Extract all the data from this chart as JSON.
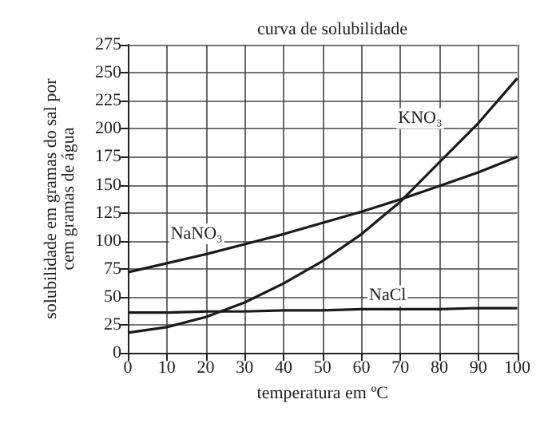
{
  "chart_data": {
    "type": "line",
    "title": "curva de solubilidade",
    "xlabel": "temperatura em ºC",
    "ylabel": "solubilidade em gramas do sal por\ncem gramas de água",
    "x": [
      0,
      10,
      20,
      30,
      40,
      50,
      60,
      70,
      80,
      90,
      100
    ],
    "series": [
      {
        "name": "KNO₃",
        "color": "#1a1a1a",
        "values": [
          18,
          23,
          32,
          45,
          62,
          82,
          106,
          135,
          170,
          205,
          245
        ]
      },
      {
        "name": "NaNO₃",
        "color": "#1a1a1a",
        "values": [
          72,
          80,
          88,
          97,
          106,
          116,
          126,
          137,
          149,
          161,
          175
        ]
      },
      {
        "name": "NaCl",
        "color": "#1a1a1a",
        "values": [
          36,
          36,
          37,
          37,
          38,
          38,
          39,
          39,
          39,
          40,
          40
        ]
      }
    ],
    "xlim": [
      0,
      100
    ],
    "xticks": [
      0,
      10,
      20,
      30,
      40,
      50,
      60,
      70,
      80,
      90,
      100
    ],
    "ylim": [
      0,
      275
    ],
    "yticks": [
      0,
      25,
      50,
      75,
      100,
      125,
      150,
      175,
      200,
      225,
      250,
      275
    ],
    "grid": true,
    "legend": false,
    "marker": "none",
    "line_style": "solid"
  }
}
